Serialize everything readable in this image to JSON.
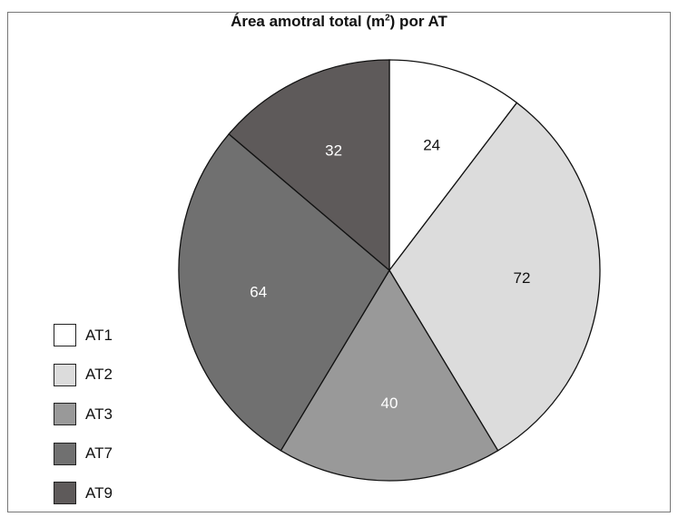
{
  "chart_data": {
    "type": "pie",
    "title": {
      "prefix": "Área amotral total (m",
      "superscript": "2",
      "suffix": ") por AT"
    },
    "categories": [
      "AT1",
      "AT2",
      "AT3",
      "AT7",
      "AT9"
    ],
    "values": [
      24,
      72,
      40,
      64,
      32
    ],
    "colors": [
      "#ffffff",
      "#dcdcdc",
      "#999999",
      "#707070",
      "#5e5a5a"
    ],
    "label_colors": [
      "#111111",
      "#111111",
      "#ffffff",
      "#ffffff",
      "#ffffff"
    ],
    "legend_position": "left",
    "start_angle": "12 o'clock",
    "direction": "clockwise"
  }
}
